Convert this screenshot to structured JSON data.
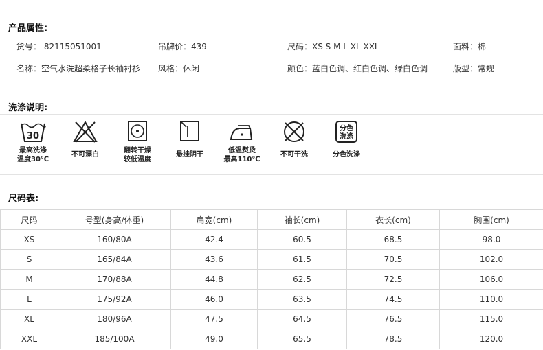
{
  "product_attrs": {
    "title": "产品属性:",
    "row1": [
      "货号： 82115051001",
      "吊牌价：439",
      "尺码：XS S M L XL XXL",
      "面料：棉"
    ],
    "row2": [
      "名称：空气水洗超柔格子长袖衬衫",
      "风格：休闲",
      "颜色：蓝白色调、红白色调、绿白色调",
      "版型：常规"
    ]
  },
  "wash": {
    "title": "洗涤说明:",
    "items": [
      {
        "icon": "wash-30-icon",
        "label1": "最高洗涤",
        "label2": "温度30℃",
        "temp": "30"
      },
      {
        "icon": "no-bleach-icon",
        "label1": "不可漂白",
        "label2": ""
      },
      {
        "icon": "tumble-dry-low-icon",
        "label1": "翻转干燥",
        "label2": "较低温度"
      },
      {
        "icon": "line-dry-shade-icon",
        "label1": "悬挂阴干",
        "label2": ""
      },
      {
        "icon": "iron-low-icon",
        "label1": "低温熨烫",
        "label2": "最高110℃"
      },
      {
        "icon": "no-dry-clean-icon",
        "label1": "不可干洗",
        "label2": ""
      },
      {
        "icon": "separate-wash-icon",
        "label1": "分色洗涤",
        "label2": "",
        "badge1": "分色",
        "badge2": "洗涤"
      }
    ]
  },
  "size_table": {
    "title": "尺码表:",
    "headers": [
      "尺码",
      "号型(身高/体重)",
      "肩宽(cm)",
      "袖长(cm)",
      "衣长(cm)",
      "胸围(cm)"
    ],
    "rows": [
      [
        "XS",
        "160/80A",
        "42.4",
        "60.5",
        "68.5",
        "98.0"
      ],
      [
        "S",
        "165/84A",
        "43.6",
        "61.5",
        "70.5",
        "102.0"
      ],
      [
        "M",
        "170/88A",
        "44.8",
        "62.5",
        "72.5",
        "106.0"
      ],
      [
        "L",
        "175/92A",
        "46.0",
        "63.5",
        "74.5",
        "110.0"
      ],
      [
        "XL",
        "180/96A",
        "47.5",
        "64.5",
        "76.5",
        "115.0"
      ],
      [
        "XXL",
        "185/100A",
        "49.0",
        "65.5",
        "78.5",
        "120.0"
      ]
    ]
  }
}
